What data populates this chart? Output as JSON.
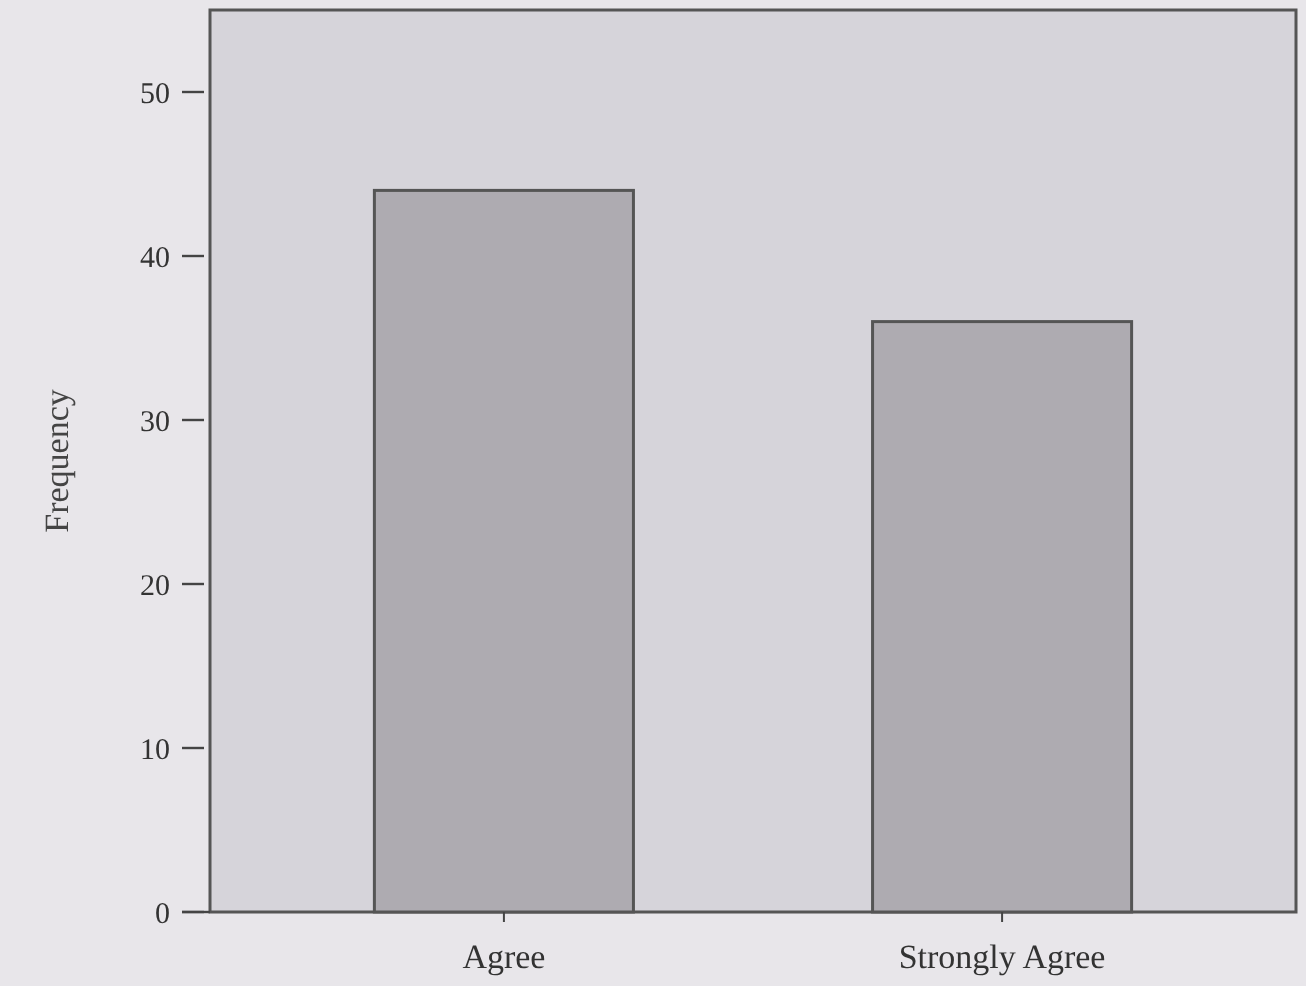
{
  "chart_data": {
    "type": "bar",
    "ylabel": "Frequency",
    "categories": [
      "Agree",
      "Strongly Agree"
    ],
    "values": [
      44,
      36
    ],
    "color": "#aeabb1",
    "ylim": [
      0,
      55
    ],
    "yticks": [
      0,
      10,
      20,
      30,
      40,
      50
    ],
    "grid": false
  }
}
